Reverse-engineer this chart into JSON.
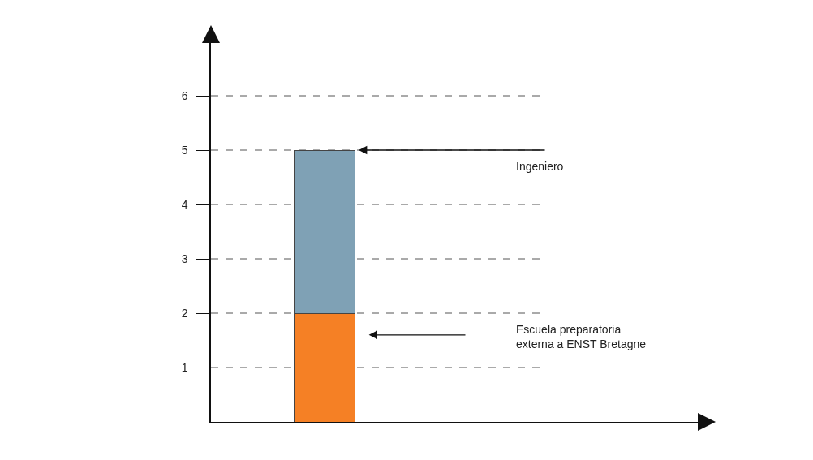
{
  "chart_data": {
    "type": "bar",
    "stacked": true,
    "categories": [
      null
    ],
    "series": [
      {
        "color": "#f58025",
        "values": [
          2
        ]
      },
      {
        "color": "#7fa1b5",
        "values": [
          3
        ]
      }
    ],
    "ylim": [
      0,
      7
    ],
    "yticks": [
      1,
      2,
      3,
      4,
      5,
      6
    ],
    "grid": "y",
    "line_style": "dashed",
    "annotations": [
      "Ingeniero",
      "Escuela preparatoria\nexterna a ENST Bretagne"
    ]
  }
}
